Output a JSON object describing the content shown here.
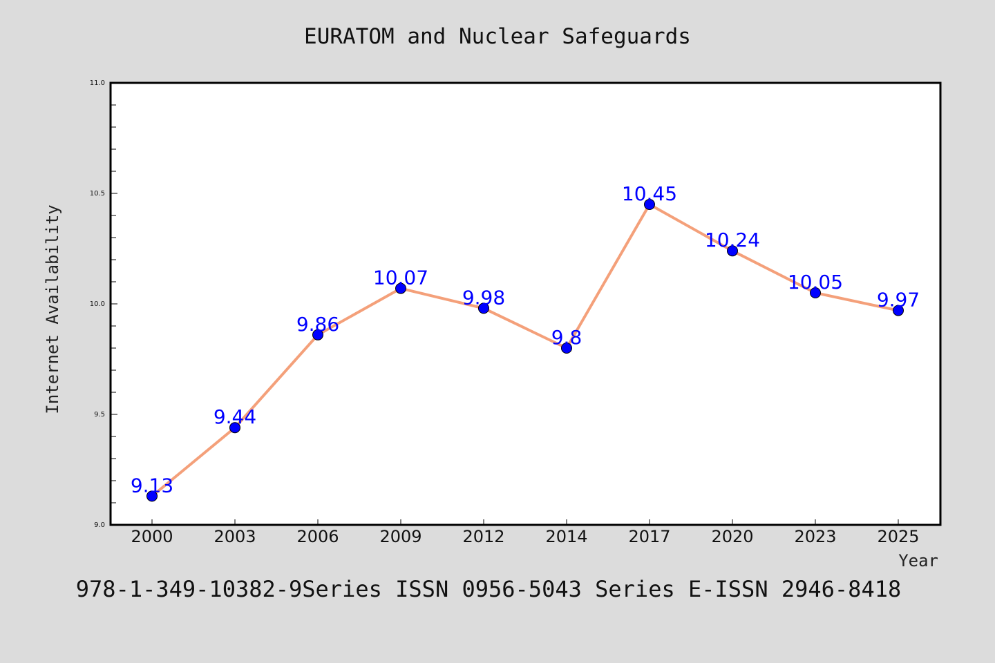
{
  "chart_data": {
    "type": "line",
    "title": "EURATOM and Nuclear Safeguards",
    "xlabel": "Year",
    "ylabel": "Internet Availability",
    "categories": [
      "2000",
      "2003",
      "2006",
      "2009",
      "2012",
      "2014",
      "2017",
      "2020",
      "2023",
      "2025"
    ],
    "series": [
      {
        "values": [
          9.13,
          9.44,
          9.86,
          10.07,
          9.98,
          9.8,
          10.45,
          10.24,
          10.05,
          9.97
        ]
      }
    ],
    "data_labels": [
      "9.13",
      "9.44",
      "9.86",
      "10.07",
      "9.98",
      "9.8",
      "10.45",
      "10.24",
      "10.05",
      "9.97"
    ],
    "ylim": [
      9.0,
      11.0
    ],
    "yticks": [
      "9.0",
      "9.5",
      "10.0",
      "10.5",
      "11.0"
    ],
    "grid": false,
    "line_color": "#f4a07a",
    "marker_color": "#0000ff",
    "label_color": "#0000ff"
  },
  "footer": "978-1-349-10382-9Series ISSN 0956-5043 Series E-ISSN 2946-8418"
}
